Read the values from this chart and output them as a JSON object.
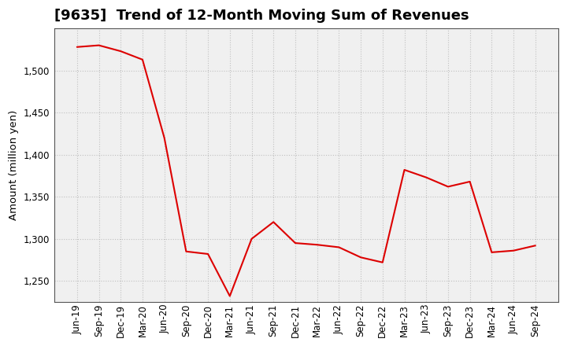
{
  "title": "[9635]  Trend of 12-Month Moving Sum of Revenues",
  "ylabel": "Amount (million yen)",
  "background_color": "#ffffff",
  "plot_bg_color": "#f0f0f0",
  "grid_color": "#bbbbbb",
  "line_color": "#dd0000",
  "x_labels": [
    "Jun-19",
    "Sep-19",
    "Dec-19",
    "Mar-20",
    "Jun-20",
    "Sep-20",
    "Dec-20",
    "Mar-21",
    "Jun-21",
    "Sep-21",
    "Dec-21",
    "Mar-22",
    "Jun-22",
    "Sep-22",
    "Dec-22",
    "Mar-23",
    "Jun-23",
    "Sep-23",
    "Dec-23",
    "Mar-24",
    "Jun-24",
    "Sep-24"
  ],
  "y_values": [
    1528,
    1530,
    1523,
    1513,
    1420,
    1285,
    1282,
    1232,
    1300,
    1320,
    1295,
    1293,
    1290,
    1278,
    1272,
    1382,
    1373,
    1362,
    1368,
    1284,
    1286,
    1292
  ],
  "ylim": [
    1225,
    1550
  ],
  "yticks": [
    1250,
    1300,
    1350,
    1400,
    1450,
    1500
  ],
  "title_fontsize": 13,
  "tick_fontsize": 8.5,
  "ylabel_fontsize": 9.5
}
